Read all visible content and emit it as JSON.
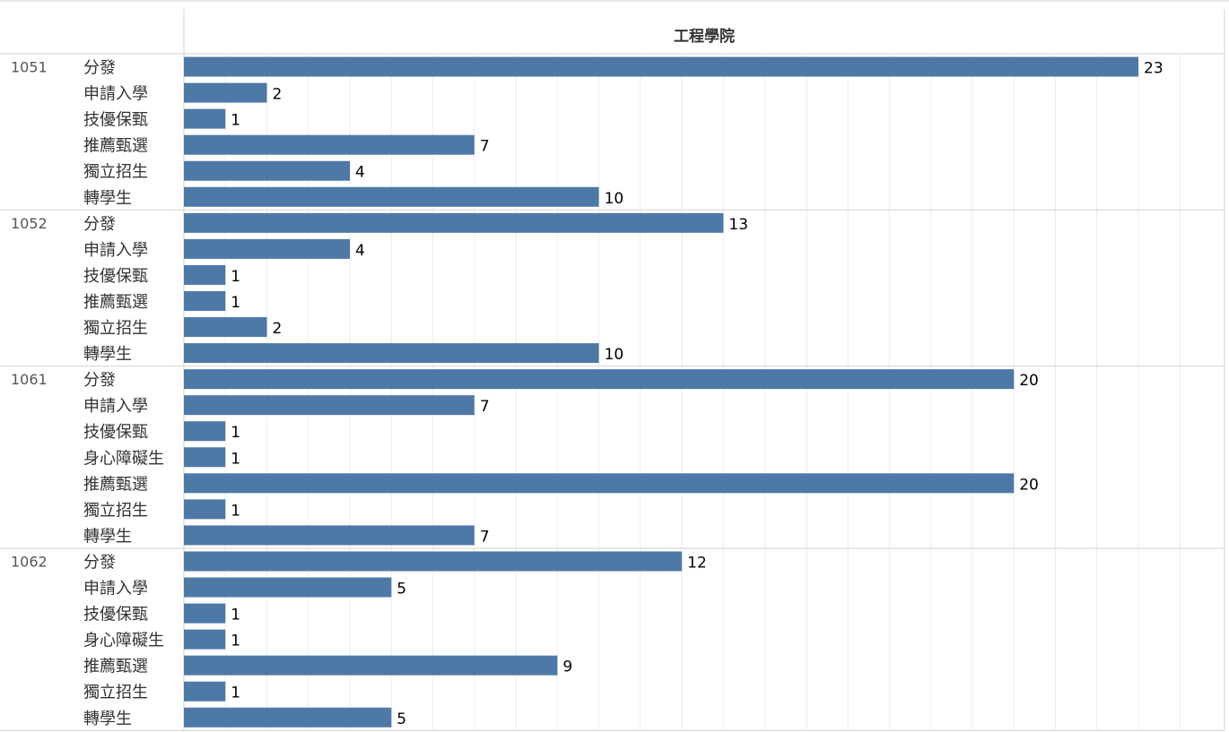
{
  "colors": {
    "bar": "#4e79a7",
    "grid": "#ececec",
    "divider": "#d2d2d2",
    "text": "#333333",
    "year_text": "#555555",
    "label_text": "#000000"
  },
  "chart_data": {
    "type": "bar",
    "orientation": "horizontal",
    "panel_title": "工程學院",
    "xlim": [
      0,
      24
    ],
    "grid": true,
    "groups": [
      {
        "year": "1051",
        "rows": [
          {
            "category": "分發",
            "value": 23
          },
          {
            "category": "申請入學",
            "value": 2
          },
          {
            "category": "技優保甄",
            "value": 1
          },
          {
            "category": "推薦甄選",
            "value": 7
          },
          {
            "category": "獨立招生",
            "value": 4
          },
          {
            "category": "轉學生",
            "value": 10
          }
        ]
      },
      {
        "year": "1052",
        "rows": [
          {
            "category": "分發",
            "value": 13
          },
          {
            "category": "申請入學",
            "value": 4
          },
          {
            "category": "技優保甄",
            "value": 1
          },
          {
            "category": "推薦甄選",
            "value": 1
          },
          {
            "category": "獨立招生",
            "value": 2
          },
          {
            "category": "轉學生",
            "value": 10
          }
        ]
      },
      {
        "year": "1061",
        "rows": [
          {
            "category": "分發",
            "value": 20
          },
          {
            "category": "申請入學",
            "value": 7
          },
          {
            "category": "技優保甄",
            "value": 1
          },
          {
            "category": "身心障礙生",
            "value": 1
          },
          {
            "category": "推薦甄選",
            "value": 20
          },
          {
            "category": "獨立招生",
            "value": 1
          },
          {
            "category": "轉學生",
            "value": 7
          }
        ]
      },
      {
        "year": "1062",
        "rows": [
          {
            "category": "分發",
            "value": 12
          },
          {
            "category": "申請入學",
            "value": 5
          },
          {
            "category": "技優保甄",
            "value": 1
          },
          {
            "category": "身心障礙生",
            "value": 1
          },
          {
            "category": "推薦甄選",
            "value": 9
          },
          {
            "category": "獨立招生",
            "value": 1
          },
          {
            "category": "轉學生",
            "value": 5
          }
        ]
      }
    ]
  }
}
